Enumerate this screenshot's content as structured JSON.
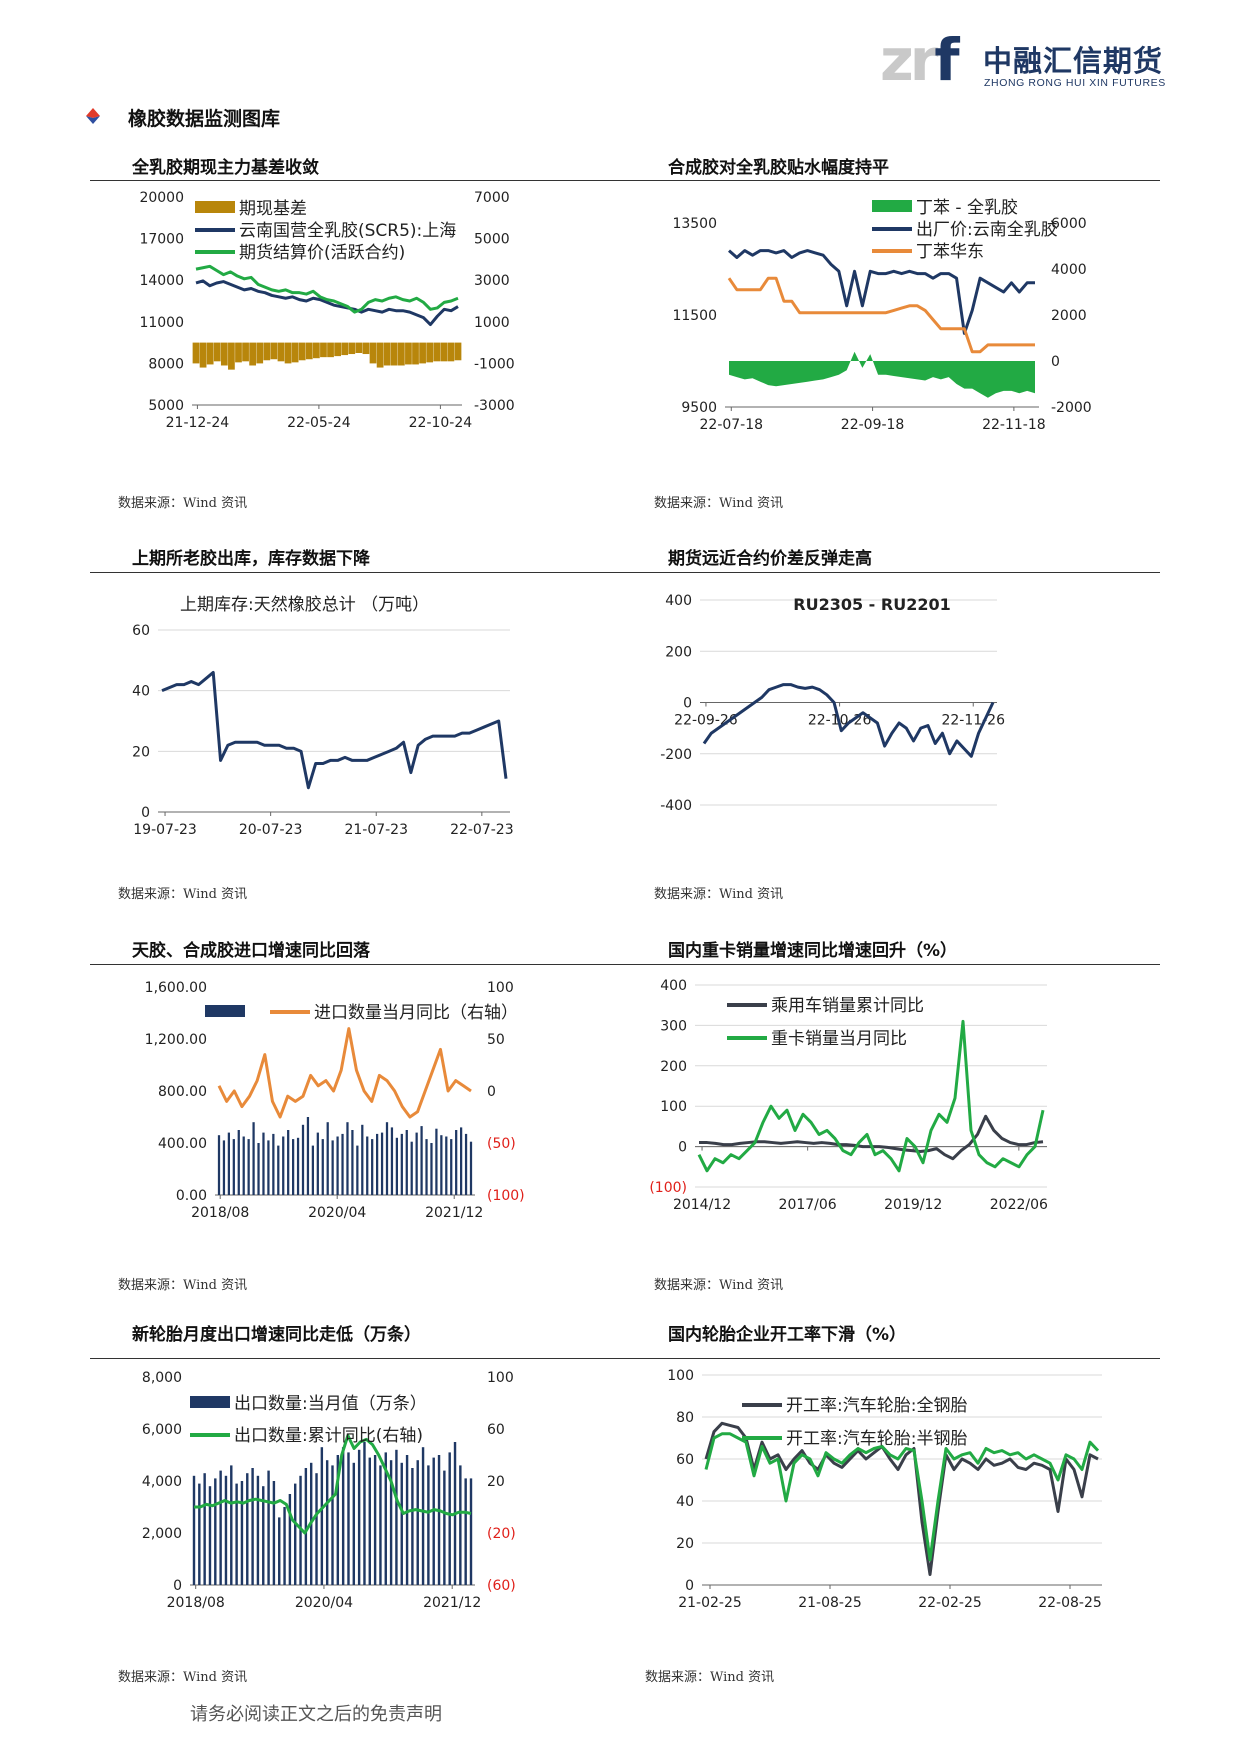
{
  "header": {
    "logo_mark": "zrf",
    "logo_cn": "中融汇信期货",
    "logo_en": "ZHONG RONG HUI XIN FUTURES",
    "brand_color": "#1f3864"
  },
  "section": {
    "title": "橡胶数据监测图库",
    "icon": "diamond-bullet-icon"
  },
  "source_text": "数据来源：Wind 资讯",
  "footer": "请务必阅读正文之后的免责声明",
  "panels": [
    {
      "title": "全乳胶期现主力基差收敛"
    },
    {
      "title": "合成胶对全乳胶贴水幅度持平"
    },
    {
      "title": "上期所老胶出库，库存数据下降"
    },
    {
      "title": "期货远近合约价差反弹走高"
    },
    {
      "title": "天胶、合成胶进口增速同比回落"
    },
    {
      "title": "国内重卡销量增速同比增速回升（%）"
    },
    {
      "title": "新轮胎月度出口增速同比走低（万条）"
    },
    {
      "title": "国内轮胎企业开工率下滑（%）"
    }
  ],
  "chart_data": [
    {
      "type": "line",
      "x_ticks": [
        "21-12-24",
        "22-05-24",
        "22-10-24"
      ],
      "ylim": [
        5000,
        20000
      ],
      "y_ticks": [
        "20000",
        "17000",
        "14000",
        "11000",
        "8000",
        "5000"
      ],
      "y2lim": [
        -3000,
        7000
      ],
      "y2_ticks": [
        "7000",
        "5000",
        "3000",
        "1000",
        "-1000",
        "-3000"
      ],
      "legend": [
        "期现基差",
        "云南国营全乳胶(SCR5):上海",
        "期货结算价(活跃合约)"
      ],
      "series": [
        {
          "name": "期现基差",
          "kind": "bar",
          "axis": "right",
          "color": "#b8860b",
          "values": [
            -1000,
            -1200,
            -1050,
            -900,
            -1100,
            -1300,
            -950,
            -900,
            -1100,
            -1000,
            -850,
            -800,
            -900,
            -1000,
            -950,
            -850,
            -800,
            -750,
            -700,
            -700,
            -650,
            -600,
            -550,
            -500,
            -550,
            -1000,
            -1200,
            -1100,
            -1100,
            -1100,
            -1050,
            -1050,
            -1000,
            -950,
            -900,
            -900,
            -900,
            -850
          ]
        },
        {
          "name": "云南国营全乳胶(SCR5):上海",
          "color": "#1f3864",
          "axis": "left",
          "values": [
            13800,
            13950,
            13600,
            13800,
            13900,
            13700,
            13500,
            13300,
            13400,
            13200,
            13100,
            12900,
            12800,
            12700,
            12800,
            12600,
            12500,
            12700,
            12600,
            12400,
            12200,
            12100,
            12000,
            11900,
            11700,
            11900,
            11800,
            11700,
            11900,
            11800,
            11800,
            11700,
            11500,
            11300,
            10800,
            11400,
            11900,
            11800,
            12100
          ]
        },
        {
          "name": "期货结算价(活跃合约)",
          "color": "#22aa44",
          "axis": "left",
          "values": [
            14800,
            14900,
            15000,
            14700,
            14400,
            14600,
            14300,
            14100,
            14200,
            13700,
            13500,
            13300,
            13200,
            13300,
            13100,
            13100,
            13000,
            13200,
            12800,
            12600,
            12500,
            12300,
            12100,
            11700,
            11900,
            12400,
            12600,
            12500,
            12700,
            12800,
            12600,
            12500,
            12700,
            12400,
            11900,
            12000,
            12400,
            12500,
            12700
          ]
        }
      ]
    },
    {
      "type": "line",
      "x_ticks": [
        "22-07-18",
        "22-09-18",
        "22-11-18"
      ],
      "ylim": [
        9500,
        13500
      ],
      "y_ticks": [
        "13500",
        "11500",
        "9500"
      ],
      "y2lim": [
        -2000,
        6000
      ],
      "y2_ticks": [
        "6000",
        "4000",
        "2000",
        "0",
        "-2000"
      ],
      "legend": [
        "丁苯 - 全乳胶",
        "出厂价:云南全乳胶",
        "丁苯华东"
      ],
      "series": [
        {
          "name": "丁苯 - 全乳胶",
          "kind": "area",
          "axis": "right",
          "color": "#22aa44",
          "values": [
            -600,
            -700,
            -800,
            -750,
            -900,
            -1050,
            -1100,
            -1050,
            -1000,
            -950,
            -900,
            -850,
            -800,
            -700,
            -600,
            -400,
            400,
            -300,
            300,
            -600,
            -600,
            -650,
            -700,
            -750,
            -800,
            -850,
            -700,
            -800,
            -700,
            -1000,
            -1200,
            -1200,
            -1400,
            -1600,
            -1400,
            -1300,
            -1300,
            -1400,
            -1300,
            -1400
          ]
        },
        {
          "name": "出厂价:云南全乳胶",
          "color": "#1f3864",
          "axis": "left",
          "values": [
            12900,
            12750,
            12900,
            12800,
            12900,
            12900,
            12850,
            12900,
            12750,
            12850,
            12900,
            12850,
            12800,
            12600,
            12450,
            11700,
            12450,
            11700,
            12450,
            12400,
            12400,
            12450,
            12400,
            12450,
            12400,
            12400,
            12300,
            12400,
            12400,
            12300,
            11100,
            11600,
            12300,
            12200,
            12100,
            12000,
            12200,
            12000,
            12200,
            12200
          ]
        },
        {
          "name": "丁苯华东",
          "color": "#e88a3a",
          "axis": "left",
          "values": [
            12300,
            12050,
            12050,
            12050,
            12050,
            12300,
            12300,
            11800,
            11800,
            11550,
            11550,
            11550,
            11550,
            11550,
            11550,
            11550,
            11550,
            11550,
            11550,
            11550,
            11550,
            11600,
            11650,
            11700,
            11700,
            11600,
            11400,
            11200,
            11200,
            11200,
            11200,
            10700,
            10700,
            10850,
            10850,
            10850,
            10850,
            10850,
            10850,
            10850
          ]
        }
      ]
    },
    {
      "type": "line",
      "title": "上期库存:天然橡胶总计  （万吨）",
      "x_ticks": [
        "19-07-23",
        "20-07-23",
        "21-07-23",
        "22-07-23"
      ],
      "ylim": [
        0,
        60
      ],
      "y_ticks": [
        "60",
        "40",
        "20",
        "0"
      ],
      "series": [
        {
          "name": "上期库存:天然橡胶总计",
          "color": "#1f3864",
          "values": [
            40,
            41,
            42,
            42,
            43,
            42,
            44,
            46,
            17,
            22,
            23,
            23,
            23,
            23,
            22,
            22,
            22,
            21,
            21,
            20,
            8,
            16,
            16,
            17,
            17,
            18,
            17,
            17,
            17,
            18,
            19,
            20,
            21,
            23,
            13,
            22,
            24,
            25,
            25,
            25,
            25,
            26,
            26,
            27,
            28,
            29,
            30,
            11
          ]
        }
      ]
    },
    {
      "type": "line",
      "title": "RU2305 - RU2201",
      "x_ticks": [
        "22-09-26",
        "22-10-26",
        "22-11-26"
      ],
      "ylim": [
        -400,
        400
      ],
      "y_ticks": [
        "400",
        "200",
        "0",
        "-200",
        "-400"
      ],
      "series": [
        {
          "name": "RU2305 - RU2201",
          "color": "#1f3864",
          "values": [
            -160,
            -120,
            -100,
            -80,
            -60,
            -40,
            -20,
            0,
            20,
            50,
            60,
            70,
            70,
            60,
            55,
            60,
            50,
            30,
            0,
            -110,
            -80,
            -60,
            -40,
            -60,
            -80,
            -170,
            -120,
            -80,
            -100,
            -150,
            -100,
            -90,
            -160,
            -120,
            -200,
            -150,
            -180,
            -210,
            -120,
            -60,
            0
          ]
        }
      ]
    },
    {
      "type": "bar",
      "x_ticks": [
        "2018/08",
        "2020/04",
        "2021/12"
      ],
      "ylim": [
        0,
        1600
      ],
      "y_ticks": [
        "1,600.00",
        "1,200.00",
        "800.00",
        "400.00",
        "0.00"
      ],
      "y2lim": [
        -100,
        100
      ],
      "y2_ticks": [
        "100",
        "50",
        "0",
        "(50)",
        "(100)"
      ],
      "legend": [
        "",
        "进口数量当月同比（右轴）"
      ],
      "series": [
        {
          "name": "",
          "kind": "bar",
          "axis": "left",
          "color": "#1f3864",
          "values": [
            460,
            420,
            480,
            430,
            500,
            450,
            430,
            560,
            400,
            480,
            420,
            470,
            380,
            450,
            500,
            430,
            440,
            540,
            600,
            380,
            480,
            430,
            560,
            420,
            450,
            470,
            560,
            500,
            380,
            540,
            450,
            430,
            470,
            480,
            560,
            520,
            440,
            470,
            500,
            410,
            480,
            530,
            430,
            400,
            510,
            460,
            450,
            430,
            500,
            520,
            470,
            410
          ]
        },
        {
          "name": "进口数量当月同比（右轴）",
          "color": "#e88a3a",
          "axis": "right",
          "values": [
            5,
            -10,
            0,
            -15,
            -5,
            10,
            35,
            -10,
            -25,
            -5,
            -10,
            -5,
            15,
            5,
            10,
            0,
            20,
            60,
            20,
            0,
            -10,
            15,
            10,
            0,
            -15,
            -25,
            -20,
            0,
            20,
            40,
            0,
            10,
            5,
            0
          ]
        }
      ]
    },
    {
      "type": "line",
      "x_ticks": [
        "2014/12",
        "2017/06",
        "2019/12",
        "2022/06"
      ],
      "ylim": [
        -100,
        400
      ],
      "y_ticks": [
        "400",
        "300",
        "200",
        "100",
        "0",
        "(100)"
      ],
      "legend": [
        "乘用车销量累计同比",
        "重卡销量当月同比"
      ],
      "series": [
        {
          "name": "乘用车销量累计同比",
          "color": "#3a3f4a",
          "values": [
            10,
            10,
            8,
            5,
            5,
            8,
            10,
            12,
            12,
            10,
            8,
            10,
            12,
            10,
            8,
            10,
            8,
            5,
            5,
            3,
            0,
            0,
            0,
            -2,
            -5,
            -8,
            -10,
            -12,
            -10,
            -5,
            -20,
            -30,
            -10,
            5,
            30,
            75,
            40,
            20,
            10,
            5,
            5,
            10,
            12
          ]
        },
        {
          "name": "重卡销量当月同比",
          "color": "#22aa44",
          "values": [
            -20,
            -60,
            -30,
            -40,
            -20,
            -30,
            -10,
            10,
            60,
            100,
            70,
            90,
            40,
            80,
            60,
            30,
            40,
            20,
            -10,
            -20,
            10,
            30,
            -20,
            -10,
            -30,
            -60,
            20,
            0,
            -40,
            40,
            80,
            60,
            120,
            310,
            40,
            -20,
            -40,
            -50,
            -30,
            -40,
            -50,
            -20,
            0,
            90
          ]
        }
      ]
    },
    {
      "type": "bar",
      "x_ticks": [
        "2018/08",
        "2020/04",
        "2021/12"
      ],
      "ylim": [
        0,
        8000
      ],
      "y_ticks": [
        "8,000",
        "6,000",
        "4,000",
        "2,000",
        "0"
      ],
      "y2lim": [
        -60,
        100
      ],
      "y2_ticks": [
        "100",
        "60",
        "20",
        "(20)",
        "(60)"
      ],
      "legend": [
        "出口数量:当月值（万条）",
        "出口数量:累计同比(右轴)"
      ],
      "series": [
        {
          "name": "出口数量:当月值（万条）",
          "kind": "bar",
          "axis": "left",
          "color": "#1f3864",
          "values": [
            4200,
            3900,
            4300,
            3800,
            4100,
            4400,
            4200,
            4600,
            3900,
            4000,
            4300,
            4500,
            4200,
            3800,
            4400,
            4000,
            2600,
            3000,
            3500,
            3900,
            4200,
            4500,
            4700,
            4300,
            5300,
            4800,
            4600,
            5000,
            5300,
            5100,
            4700,
            5200,
            5500,
            4900,
            5000,
            4600,
            5100,
            4800,
            5200,
            4700,
            5000,
            4500,
            4800,
            5300,
            4600,
            4900,
            5000,
            4400,
            5100,
            5500,
            4600,
            4100,
            4100
          ]
        },
        {
          "name": "出口数量:累计同比(右轴)",
          "color": "#22aa44",
          "axis": "right",
          "values": [
            0,
            0,
            2,
            1,
            3,
            5,
            3,
            4,
            3,
            5,
            6,
            5,
            4,
            3,
            5,
            2,
            -10,
            -15,
            -20,
            -12,
            -5,
            0,
            5,
            10,
            40,
            55,
            45,
            50,
            52,
            48,
            40,
            30,
            20,
            5,
            -5,
            -3,
            -2,
            -3,
            -4,
            -2,
            -3,
            -5,
            -6,
            -4,
            -4,
            -5
          ]
        }
      ]
    },
    {
      "type": "line",
      "x_ticks": [
        "21-02-25",
        "21-08-25",
        "22-02-25",
        "22-08-25"
      ],
      "ylim": [
        0,
        100
      ],
      "y_ticks": [
        "100",
        "80",
        "60",
        "40",
        "20",
        "0"
      ],
      "legend": [
        "开工率:汽车轮胎:全钢胎",
        "开工率:汽车轮胎:半钢胎"
      ],
      "series": [
        {
          "name": "开工率:汽车轮胎:全钢胎",
          "color": "#3a3f4a",
          "values": [
            60,
            73,
            77,
            76,
            75,
            70,
            55,
            68,
            60,
            62,
            55,
            60,
            64,
            58,
            55,
            62,
            58,
            56,
            60,
            64,
            60,
            63,
            66,
            60,
            55,
            62,
            65,
            30,
            5,
            35,
            62,
            55,
            60,
            58,
            55,
            60,
            57,
            58,
            60,
            56,
            55,
            58,
            57,
            55,
            35,
            60,
            55,
            42,
            62,
            60
          ]
        },
        {
          "name": "开工率:汽车轮胎:半钢胎",
          "color": "#22aa44",
          "values": [
            55,
            70,
            72,
            72,
            70,
            68,
            52,
            66,
            58,
            60,
            40,
            58,
            62,
            60,
            52,
            63,
            60,
            58,
            62,
            65,
            63,
            65,
            66,
            62,
            60,
            65,
            64,
            40,
            12,
            40,
            65,
            60,
            62,
            63,
            58,
            65,
            63,
            64,
            62,
            63,
            60,
            62,
            60,
            58,
            50,
            62,
            60,
            55,
            68,
            64
          ]
        }
      ]
    }
  ]
}
